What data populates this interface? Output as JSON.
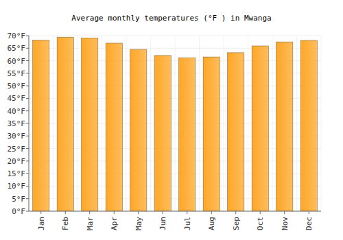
{
  "chart_data": {
    "type": "bar",
    "title": "Average monthly temperatures (°F ) in Mwanga",
    "categories": [
      "Jan",
      "Feb",
      "Mar",
      "Apr",
      "May",
      "Jun",
      "Jul",
      "Aug",
      "Sep",
      "Oct",
      "Nov",
      "Dec"
    ],
    "values": [
      68.2,
      69.4,
      69.1,
      67.0,
      64.5,
      62.1,
      61.2,
      61.5,
      63.2,
      65.9,
      67.5,
      68.1
    ],
    "color": "#ffa726",
    "ylim": [
      0,
      70
    ],
    "yticks": [
      {
        "value": 0,
        "label": "0°F"
      },
      {
        "value": 5,
        "label": "5°F"
      },
      {
        "value": 10,
        "label": "10°F"
      },
      {
        "value": 15,
        "label": "15°F"
      },
      {
        "value": 20,
        "label": "20°F"
      },
      {
        "value": 25,
        "label": "25°F"
      },
      {
        "value": 30,
        "label": "30°F"
      },
      {
        "value": 35,
        "label": "35°F"
      },
      {
        "value": 40,
        "label": "40°F"
      },
      {
        "value": 45,
        "label": "45°F"
      },
      {
        "value": 50,
        "label": "50°F"
      },
      {
        "value": 55,
        "label": "55°F"
      },
      {
        "value": 60,
        "label": "60°F"
      },
      {
        "value": 65,
        "label": "65°F"
      },
      {
        "value": 70,
        "label": "70°F"
      }
    ],
    "grid": true
  }
}
